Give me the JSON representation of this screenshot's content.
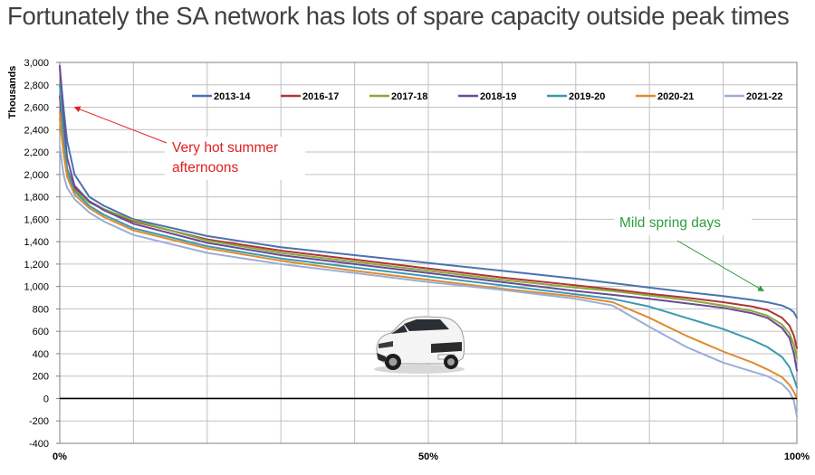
{
  "page_title": "Fortunately the SA network has lots of spare capacity outside peak times",
  "colors": {
    "annotation_red": "#e02020",
    "annotation_green": "#2e9e3e",
    "grid": "#c0c0c0",
    "axis": "#000000"
  },
  "vehicle_image": "white-suv-image",
  "chart_data": {
    "type": "line",
    "title": "Fortunately the SA network has lots of spare capacity outside peak times",
    "ylabel": "Thousands",
    "xlabel": "",
    "ylim": [
      -400,
      3000
    ],
    "xlim": [
      0,
      100
    ],
    "y_ticks": [
      -400,
      -200,
      0,
      200,
      400,
      600,
      800,
      1000,
      1200,
      1400,
      1600,
      1800,
      2000,
      2200,
      2400,
      2600,
      2800,
      3000
    ],
    "y_tick_labels": [
      "-400",
      "-200",
      "0",
      "200",
      "400",
      "600",
      "800",
      "1,000",
      "1,200",
      "1,400",
      "1,600",
      "1,800",
      "2,000",
      "2,200",
      "2,400",
      "2,600",
      "2,800",
      "3,000"
    ],
    "x_grid": [
      0,
      10,
      20,
      30,
      40,
      50,
      60,
      70,
      80,
      90,
      100
    ],
    "x_tick_labels": [
      {
        "value": 0,
        "label": "0%"
      },
      {
        "value": 50,
        "label": "50%"
      },
      {
        "value": 100,
        "label": "100%"
      }
    ],
    "legend_position": "top",
    "x": [
      0,
      0.5,
      1,
      2,
      4,
      6,
      10,
      20,
      30,
      40,
      50,
      60,
      70,
      75,
      80,
      85,
      90,
      94,
      96,
      98,
      99,
      99.6,
      100
    ],
    "series": [
      {
        "name": "2013-14",
        "color": "#4a72b0",
        "values": [
          2950,
          2600,
          2300,
          2000,
          1800,
          1720,
          1600,
          1450,
          1350,
          1280,
          1210,
          1140,
          1070,
          1030,
          990,
          950,
          915,
          880,
          860,
          830,
          800,
          770,
          720
        ]
      },
      {
        "name": "2016-17",
        "color": "#b03535",
        "values": [
          2700,
          2300,
          2050,
          1880,
          1760,
          1690,
          1580,
          1420,
          1320,
          1240,
          1160,
          1080,
          1010,
          975,
          935,
          900,
          860,
          820,
          790,
          720,
          650,
          560,
          450
        ]
      },
      {
        "name": "2017-18",
        "color": "#8aa83c",
        "values": [
          2500,
          2200,
          2000,
          1860,
          1750,
          1690,
          1590,
          1410,
          1300,
          1220,
          1140,
          1060,
          990,
          960,
          920,
          880,
          830,
          780,
          740,
          660,
          580,
          480,
          360
        ]
      },
      {
        "name": "2018-19",
        "color": "#6b4a96",
        "values": [
          2970,
          2500,
          2150,
          1900,
          1760,
          1680,
          1560,
          1390,
          1280,
          1200,
          1120,
          1040,
          960,
          925,
          890,
          850,
          810,
          760,
          720,
          630,
          540,
          400,
          250
        ]
      },
      {
        "name": "2019-20",
        "color": "#3a9ab0",
        "values": [
          2800,
          2350,
          2050,
          1850,
          1720,
          1640,
          1520,
          1360,
          1250,
          1170,
          1090,
          1010,
          930,
          890,
          820,
          720,
          620,
          520,
          460,
          370,
          280,
          180,
          100
        ]
      },
      {
        "name": "2020-21",
        "color": "#e08a30",
        "values": [
          2550,
          2200,
          1980,
          1820,
          1700,
          1620,
          1500,
          1340,
          1230,
          1140,
          1060,
          980,
          910,
          860,
          720,
          560,
          420,
          320,
          260,
          190,
          120,
          60,
          0
        ]
      },
      {
        "name": "2021-22",
        "color": "#9aaed6",
        "values": [
          2250,
          2000,
          1880,
          1780,
          1660,
          1580,
          1460,
          1300,
          1200,
          1120,
          1040,
          970,
          890,
          830,
          640,
          460,
          320,
          240,
          200,
          130,
          60,
          -20,
          -160
        ]
      }
    ],
    "annotations": [
      {
        "id": "hot",
        "text_lines": [
          "Very hot summer",
          "afternoons"
        ],
        "color": "#e02020",
        "arrow_to": {
          "x": 2,
          "y": 2600
        }
      },
      {
        "id": "mild",
        "text_lines": [
          "Mild spring days"
        ],
        "color": "#2e9e3e",
        "arrow_to": {
          "x": 95.5,
          "y": 960
        }
      }
    ]
  }
}
